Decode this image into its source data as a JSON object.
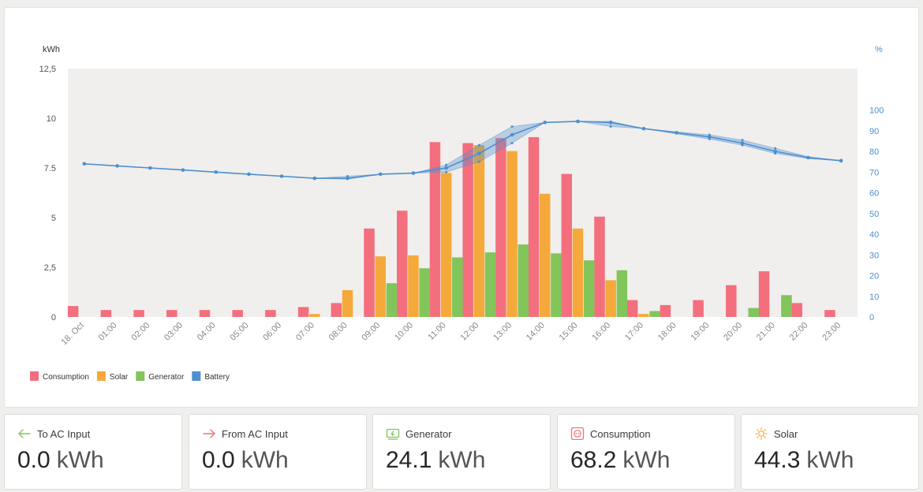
{
  "chart_data": {
    "type": "bar",
    "left_axis_label": "kWh",
    "right_axis_label": "%",
    "y_left_ticks": [
      "0",
      "2,5",
      "5",
      "7.5",
      "10",
      "12,5"
    ],
    "y_left_range": [
      0,
      12.5
    ],
    "y_right_ticks": [
      "0",
      "10",
      "20",
      "30",
      "40",
      "50",
      "60",
      "70",
      "80",
      "90",
      "100"
    ],
    "y_right_range": [
      0,
      120
    ],
    "categories": [
      "18. Oct",
      "01:00",
      "02:00",
      "03:00",
      "04:00",
      "05:00",
      "06:00",
      "07:00",
      "08:00",
      "09:00",
      "10:00",
      "11:00",
      "12:00",
      "13:00",
      "14:00",
      "15:00",
      "16:00",
      "17:00",
      "18:00",
      "19:00",
      "20:00",
      "21:00",
      "22:00",
      "23:00"
    ],
    "series": [
      {
        "name": "Consumption",
        "color": "#f46f7d",
        "values": [
          0.55,
          0.35,
          0.35,
          0.35,
          0.35,
          0.35,
          0.35,
          0.5,
          0.7,
          4.45,
          5.35,
          8.8,
          8.75,
          9.0,
          9.05,
          7.2,
          5.05,
          0.85,
          0.6,
          0.85,
          1.6,
          2.3,
          0.7,
          0.35
        ]
      },
      {
        "name": "Solar",
        "color": "#f5a93b",
        "values": [
          0,
          0,
          0,
          0,
          0,
          0,
          0,
          0.15,
          1.35,
          3.05,
          3.1,
          7.25,
          8.65,
          8.35,
          6.2,
          4.45,
          1.85,
          0.15,
          0,
          0,
          0,
          0,
          0,
          0
        ]
      },
      {
        "name": "Generator",
        "color": "#82c55b",
        "values": [
          0,
          0,
          0,
          0,
          0,
          0,
          0,
          0,
          0,
          1.7,
          2.45,
          3.0,
          3.25,
          3.65,
          3.2,
          2.85,
          2.35,
          0.3,
          0,
          0,
          0.45,
          1.1,
          0,
          0
        ]
      },
      {
        "name": "Battery",
        "color": "#4d8fcf",
        "type": "line",
        "values": [
          74,
          73,
          72,
          71,
          70,
          69,
          68,
          67,
          67,
          69,
          69.5,
          72,
          79,
          88,
          94,
          94.5,
          94,
          91,
          89,
          87,
          84,
          80,
          77,
          75.5
        ],
        "band_low": [
          74,
          73,
          72,
          71,
          70,
          69,
          68,
          67,
          66.5,
          69,
          69.5,
          70,
          75,
          84,
          94,
          94.5,
          92,
          91,
          88.5,
          86,
          83,
          79,
          76.5,
          75.5
        ],
        "band_high": [
          74,
          73,
          72,
          71,
          70,
          69,
          68,
          67,
          68,
          69,
          69.5,
          73.5,
          83,
          92,
          94,
          94.5,
          94.5,
          91,
          89.5,
          88,
          85.5,
          81.5,
          77.5,
          75.5
        ]
      }
    ],
    "legend": [
      "Consumption",
      "Solar",
      "Generator",
      "Battery"
    ],
    "legend_placement": "bottom-left",
    "plot_background": "#f0efed"
  },
  "stats": [
    {
      "label": "To AC Input",
      "value": "0.0",
      "unit": "kWh",
      "icon": "arrow-left-icon",
      "color": "#82c55b"
    },
    {
      "label": "From AC Input",
      "value": "0.0",
      "unit": "kWh",
      "icon": "arrow-right-icon",
      "color": "#f46f7d"
    },
    {
      "label": "Generator",
      "value": "24.1",
      "unit": "kWh",
      "icon": "generator-icon",
      "color": "#82c55b"
    },
    {
      "label": "Consumption",
      "value": "68.2",
      "unit": "kWh",
      "icon": "socket-icon",
      "color": "#f46f7d"
    },
    {
      "label": "Solar",
      "value": "44.3",
      "unit": "kWh",
      "icon": "sun-icon",
      "color": "#f5a93b"
    }
  ]
}
